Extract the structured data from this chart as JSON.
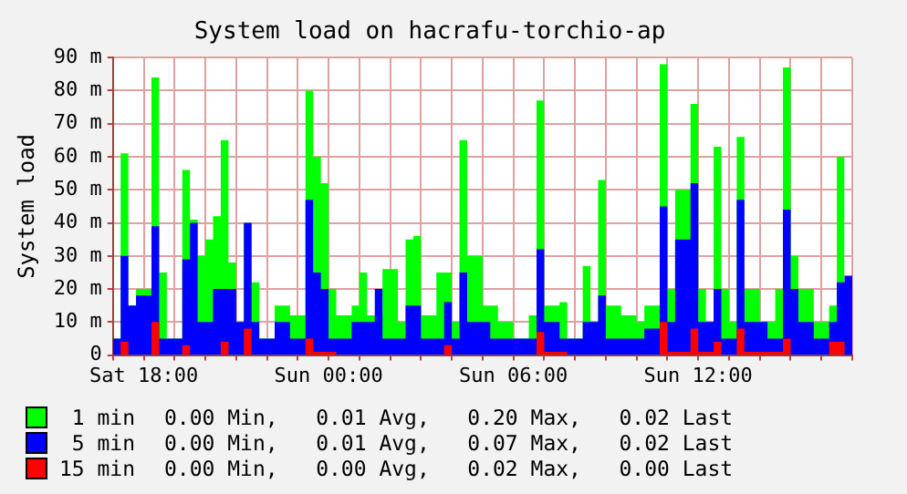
{
  "chart_data": {
    "type": "area",
    "title": "System load on hacrafu-torchio-ap",
    "ylabel": "System load",
    "categories": [
      null,
      null,
      null,
      null,
      "Sat 18:00",
      null,
      null,
      null,
      null,
      null,
      null,
      null,
      null,
      null,
      null,
      null,
      null,
      null,
      null,
      null,
      null,
      null,
      null,
      null,
      null,
      null,
      null,
      null,
      "Sun 00:00",
      null,
      null,
      null,
      null,
      null,
      null,
      null,
      null,
      null,
      null,
      null,
      null,
      null,
      null,
      null,
      null,
      null,
      null,
      null,
      null,
      null,
      null,
      null,
      "Sun 06:00",
      null,
      null,
      null,
      null,
      null,
      null,
      null,
      null,
      null,
      null,
      null,
      null,
      null,
      null,
      null,
      null,
      null,
      null,
      null,
      null,
      null,
      null,
      null,
      "Sun 12:00",
      null,
      null,
      null,
      null,
      null,
      null,
      null,
      null,
      null,
      null,
      null,
      null,
      null,
      null,
      null,
      null,
      null,
      null,
      null,
      null
    ],
    "ylim": [
      0,
      90
    ],
    "yticks": [
      0,
      {
        "value": 10,
        "label": "10 m"
      },
      {
        "value": 20,
        "label": "20 m"
      },
      {
        "value": 30,
        "label": "30 m"
      },
      {
        "value": 40,
        "label": "40 m"
      },
      {
        "value": 50,
        "label": "50 m"
      },
      {
        "value": 60,
        "label": "60 m"
      },
      {
        "value": 70,
        "label": "70 m"
      },
      {
        "value": 80,
        "label": "80 m"
      },
      {
        "value": 90,
        "label": "90 m"
      }
    ],
    "grid": true,
    "legend": "bottom",
    "series": [
      {
        "name": "1 min",
        "color": "#00ff00",
        "values": [
          5,
          5,
          61,
          15,
          20,
          20,
          84,
          25,
          5,
          5,
          56,
          41,
          30,
          35,
          42,
          65,
          28,
          10,
          40,
          22,
          5,
          5,
          15,
          15,
          12,
          12,
          80,
          60,
          52,
          20,
          12,
          12,
          15,
          25,
          12,
          12,
          26,
          26,
          10,
          35,
          36,
          12,
          12,
          25,
          25,
          10,
          65,
          30,
          30,
          15,
          15,
          10,
          10,
          5,
          5,
          12,
          77,
          15,
          15,
          16,
          5,
          5,
          27,
          10,
          53,
          15,
          15,
          12,
          12,
          10,
          15,
          15,
          88,
          20,
          50,
          50,
          76,
          20,
          10,
          63,
          20,
          10,
          66,
          20,
          20,
          10,
          10,
          20,
          87,
          30,
          20,
          20,
          10,
          10,
          15,
          60,
          null
        ]
      },
      {
        "name": "5 min",
        "color": "#0000ff",
        "values": [
          28,
          5,
          30,
          15,
          18,
          18,
          39,
          5,
          5,
          5,
          29,
          40,
          10,
          10,
          20,
          20,
          20,
          10,
          40,
          10,
          5,
          5,
          10,
          10,
          5,
          5,
          47,
          25,
          20,
          5,
          5,
          5,
          10,
          10,
          10,
          20,
          5,
          5,
          5,
          15,
          15,
          5,
          5,
          5,
          16,
          5,
          25,
          10,
          10,
          10,
          5,
          5,
          5,
          5,
          5,
          5,
          32,
          10,
          10,
          5,
          5,
          5,
          10,
          10,
          18,
          5,
          5,
          5,
          5,
          5,
          8,
          8,
          45,
          10,
          35,
          35,
          52,
          10,
          10,
          20,
          5,
          5,
          47,
          10,
          10,
          10,
          5,
          5,
          44,
          20,
          10,
          10,
          5,
          5,
          10,
          22,
          24
        ]
      },
      {
        "name": "15 min",
        "color": "#ff0000",
        "values": [
          0,
          0,
          4,
          0,
          0,
          0,
          10,
          0,
          0,
          0,
          3,
          0,
          0,
          0,
          0,
          4,
          0,
          0,
          8,
          0,
          0,
          0,
          0,
          0,
          0,
          0,
          5,
          1,
          1,
          1,
          0,
          0,
          0,
          0,
          0,
          0,
          0,
          0,
          0,
          0,
          0,
          0,
          0,
          0,
          3,
          0,
          0,
          0,
          0,
          0,
          0,
          0,
          0,
          0,
          0,
          0,
          7,
          1,
          1,
          1,
          0,
          0,
          0,
          0,
          0,
          0,
          0,
          0,
          0,
          0,
          0,
          0,
          10,
          1,
          1,
          1,
          8,
          1,
          1,
          4,
          0,
          0,
          8,
          1,
          1,
          1,
          1,
          1,
          5,
          0,
          0,
          0,
          0,
          0,
          4,
          4,
          0
        ]
      }
    ],
    "annotations": [
      "0.00 Min,   0.01 Avg,   0.20 Max,   0.02 Last",
      "0.00 Min,   0.01 Avg,   0.07 Max,   0.02 Last",
      "0.00 Min,   0.00 Avg,   0.02 Max,   0.00 Last"
    ]
  }
}
